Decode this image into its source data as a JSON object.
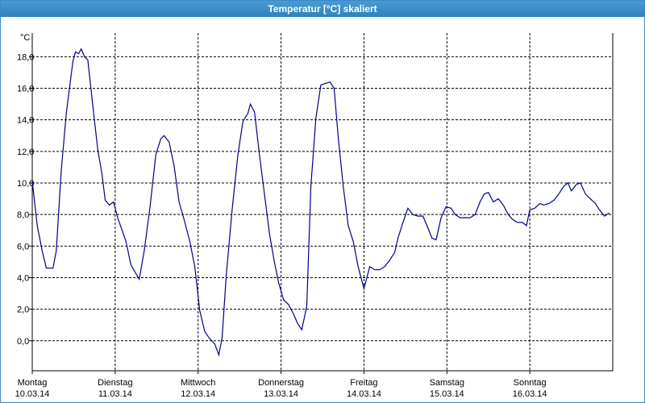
{
  "chart_data": {
    "type": "line",
    "title": "Temperatur [°C] skaliert",
    "y_unit_label": "°C",
    "color": "#00008b",
    "grid": true,
    "xlim": [
      0,
      7
    ],
    "ylim": [
      -1.9,
      19.5
    ],
    "xticks": [
      {
        "value": 0,
        "label": "Montag",
        "sublabel": "10.03.14"
      },
      {
        "value": 1,
        "label": "Dienstag",
        "sublabel": "11.03.14"
      },
      {
        "value": 2,
        "label": "Mittwoch",
        "sublabel": "12.03.14"
      },
      {
        "value": 3,
        "label": "Donnerstag",
        "sublabel": "13.03.14"
      },
      {
        "value": 4,
        "label": "Freitag",
        "sublabel": "14.03.14"
      },
      {
        "value": 5,
        "label": "Samstag",
        "sublabel": "15.03.14"
      },
      {
        "value": 6,
        "label": "Sonntag",
        "sublabel": "16.03.14"
      }
    ],
    "yticks": [
      {
        "value": 0,
        "label": "0,0"
      },
      {
        "value": 2,
        "label": "2,0"
      },
      {
        "value": 4,
        "label": "4,0"
      },
      {
        "value": 6,
        "label": "6,0"
      },
      {
        "value": 8,
        "label": "8,0"
      },
      {
        "value": 10,
        "label": "10,0"
      },
      {
        "value": 12,
        "label": "12,0"
      },
      {
        "value": 14,
        "label": "14,0"
      },
      {
        "value": 16,
        "label": "16,0"
      },
      {
        "value": 18,
        "label": "18,0"
      }
    ],
    "x": [
      0,
      0.06,
      0.12,
      0.17,
      0.25,
      0.29,
      0.35,
      0.41,
      0.49,
      0.52,
      0.56,
      0.59,
      0.63,
      0.67,
      0.73,
      0.79,
      0.84,
      0.88,
      0.93,
      0.98,
      1.03,
      1.07,
      1.13,
      1.19,
      1.29,
      1.35,
      1.42,
      1.49,
      1.55,
      1.59,
      1.65,
      1.71,
      1.77,
      1.83,
      1.9,
      1.96,
      2.02,
      2.08,
      2.13,
      2.2,
      2.25,
      2.29,
      2.34,
      2.41,
      2.48,
      2.54,
      2.6,
      2.63,
      2.68,
      2.74,
      2.8,
      2.86,
      2.92,
      2.97,
      3.03,
      3.09,
      3.15,
      3.2,
      3.25,
      3.31,
      3.36,
      3.42,
      3.48,
      3.53,
      3.59,
      3.64,
      3.69,
      3.75,
      3.81,
      3.87,
      3.93,
      4.0,
      4.07,
      4.13,
      4.19,
      4.25,
      4.31,
      4.37,
      4.41,
      4.47,
      4.53,
      4.59,
      4.65,
      4.71,
      4.76,
      4.82,
      4.87,
      4.93,
      4.99,
      5.05,
      5.1,
      5.16,
      5.22,
      5.28,
      5.34,
      5.4,
      5.45,
      5.5,
      5.56,
      5.62,
      5.68,
      5.74,
      5.79,
      5.85,
      5.91,
      5.96,
      6.0,
      6.06,
      6.12,
      6.17,
      6.23,
      6.29,
      6.35,
      6.41,
      6.46,
      6.5,
      6.56,
      6.61,
      6.67,
      6.73,
      6.79,
      6.84,
      6.9,
      6.96
    ],
    "values": [
      10.1,
      7.3,
      5.7,
      4.6,
      4.6,
      5.7,
      10.8,
      14.4,
      17.7,
      18.3,
      18.2,
      18.5,
      18.0,
      17.8,
      14.9,
      12.1,
      10.6,
      8.9,
      8.6,
      8.8,
      7.8,
      7.2,
      6.3,
      4.8,
      3.9,
      5.7,
      8.5,
      11.8,
      12.8,
      13.0,
      12.6,
      11.1,
      8.8,
      7.7,
      6.3,
      4.7,
      1.9,
      0.6,
      0.2,
      -0.2,
      -0.9,
      0.2,
      4.2,
      8.3,
      11.8,
      13.9,
      14.4,
      15.0,
      14.5,
      11.8,
      9.3,
      6.8,
      5.0,
      3.7,
      2.6,
      2.3,
      1.7,
      1.1,
      0.7,
      2.2,
      9.8,
      14.1,
      16.2,
      16.3,
      16.4,
      16.0,
      12.9,
      9.8,
      7.3,
      6.3,
      4.7,
      3.3,
      4.7,
      4.5,
      4.5,
      4.7,
      5.1,
      5.6,
      6.5,
      7.5,
      8.4,
      8.0,
      7.9,
      7.9,
      7.3,
      6.5,
      6.4,
      7.8,
      8.5,
      8.4,
      8.0,
      7.8,
      7.8,
      7.8,
      8.0,
      8.8,
      9.3,
      9.4,
      8.8,
      9.0,
      8.6,
      8.0,
      7.7,
      7.5,
      7.5,
      7.3,
      8.3,
      8.4,
      8.7,
      8.6,
      8.7,
      8.9,
      9.3,
      9.8,
      10.0,
      9.5,
      9.9,
      10.0,
      9.3,
      9.0,
      8.7,
      8.3,
      7.9,
      8.1
    ]
  }
}
